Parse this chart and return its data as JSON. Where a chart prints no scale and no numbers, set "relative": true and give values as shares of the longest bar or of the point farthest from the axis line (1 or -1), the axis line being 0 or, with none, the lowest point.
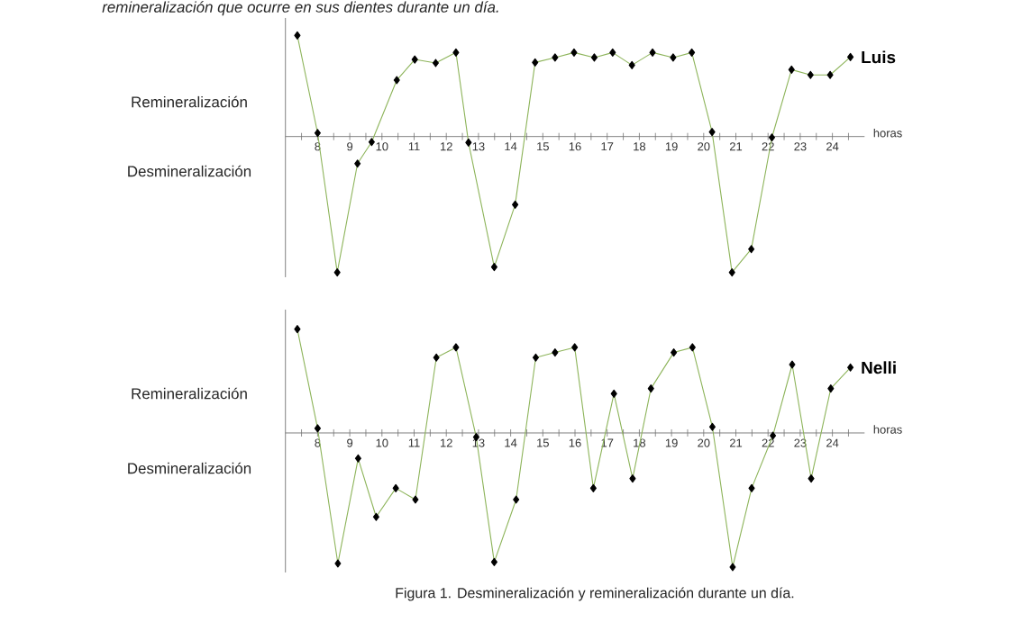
{
  "chart_data": [
    {
      "type": "line",
      "relative": true,
      "marker": "diamond",
      "line_style": "solid",
      "xlabel": "horas",
      "xlim": [
        7,
        25
      ],
      "xticks": [
        {
          "value": 7.5,
          "label": null
        },
        8,
        {
          "value": 8.5,
          "label": null
        },
        9,
        {
          "value": 9.5,
          "label": null
        },
        10,
        {
          "value": 10.5,
          "label": null
        },
        11,
        {
          "value": 11.5,
          "label": null
        },
        12,
        {
          "value": 12.5,
          "label": null
        },
        13,
        {
          "value": 13.5,
          "label": null
        },
        14,
        {
          "value": 14.5,
          "label": null
        },
        15,
        {
          "value": 15.5,
          "label": null
        },
        16,
        {
          "value": 16.5,
          "label": null
        },
        17,
        {
          "value": 17.5,
          "label": null
        },
        18,
        {
          "value": 18.5,
          "label": null
        },
        19,
        {
          "value": 19.5,
          "label": null
        },
        20,
        {
          "value": 20.5,
          "label": null
        },
        21,
        {
          "value": 21.5,
          "label": null
        },
        22,
        {
          "value": 22.5,
          "label": null
        },
        23,
        {
          "value": 23.5,
          "label": null
        },
        24,
        {
          "value": 24.5,
          "label": null
        }
      ],
      "x": [
        7.37,
        8.0,
        8.61,
        9.24,
        9.68,
        10.46,
        11.02,
        11.67,
        12.3,
        12.69,
        13.49,
        14.14,
        14.76,
        15.38,
        15.97,
        16.6,
        17.17,
        17.77,
        18.41,
        19.05,
        19.63,
        20.26,
        20.88,
        21.48,
        22.12,
        22.73,
        23.32,
        23.93,
        24.56
      ],
      "series": [
        {
          "name": "Luis",
          "color": "#8db45a",
          "values": [
            0.744,
            0.026,
            -1,
            -0.199,
            -0.04,
            0.415,
            0.567,
            0.541,
            0.618,
            -0.044,
            -0.96,
            -0.501,
            0.545,
            0.581,
            0.618,
            0.581,
            0.618,
            0.525,
            0.618,
            0.581,
            0.618,
            0.033,
            -1,
            -0.828,
            -0.007,
            0.492,
            0.453,
            0.453,
            0.585
          ]
        }
      ],
      "annotations": [
        "Remineralización",
        "Desmineralización",
        "remineralización que ocurre en sus dientes durante un día."
      ]
    },
    {
      "type": "line",
      "relative": true,
      "marker": "diamond",
      "line_style": "solid",
      "xlabel": "horas",
      "xlim": [
        7,
        25
      ],
      "xticks": [
        {
          "value": 7.5,
          "label": null
        },
        8,
        {
          "value": 8.5,
          "label": null
        },
        9,
        {
          "value": 9.5,
          "label": null
        },
        10,
        {
          "value": 10.5,
          "label": null
        },
        11,
        {
          "value": 11.5,
          "label": null
        },
        12,
        {
          "value": 12.5,
          "label": null
        },
        13,
        {
          "value": 13.5,
          "label": null
        },
        14,
        {
          "value": 14.5,
          "label": null
        },
        15,
        {
          "value": 15.5,
          "label": null
        },
        16,
        {
          "value": 16.5,
          "label": null
        },
        17,
        {
          "value": 17.5,
          "label": null
        },
        18,
        {
          "value": 18.5,
          "label": null
        },
        19,
        {
          "value": 19.5,
          "label": null
        },
        20,
        {
          "value": 20.5,
          "label": null
        },
        21,
        {
          "value": 21.5,
          "label": null
        },
        22,
        {
          "value": 22.5,
          "label": null
        },
        23,
        {
          "value": 23.5,
          "label": null
        },
        24,
        {
          "value": 24.5,
          "label": null
        }
      ],
      "x": [
        7.37,
        8.0,
        8.63,
        9.26,
        9.82,
        10.43,
        11.04,
        11.69,
        12.3,
        12.93,
        13.49,
        14.17,
        14.78,
        15.38,
        15.99,
        16.57,
        17.21,
        17.79,
        18.36,
        19.07,
        19.65,
        20.27,
        20.9,
        21.49,
        22.15,
        22.75,
        23.34,
        23.95,
        24.56
      ],
      "series": [
        {
          "name": "Nelli",
          "color": "#8db45a",
          "values": [
            0.774,
            0.034,
            -0.973,
            -0.19,
            -0.626,
            -0.412,
            -0.497,
            0.562,
            0.638,
            -0.031,
            -0.962,
            -0.497,
            0.562,
            0.6,
            0.638,
            -0.412,
            0.293,
            -0.34,
            0.331,
            0.6,
            0.638,
            0.045,
            -1,
            -0.412,
            -0.02,
            0.51,
            -0.34,
            0.331,
            0.488
          ]
        }
      ],
      "annotations": [
        "Remineralización",
        "Desmineralización",
        "Figura 1. Desmineralización y remineralización durante un día."
      ]
    }
  ]
}
